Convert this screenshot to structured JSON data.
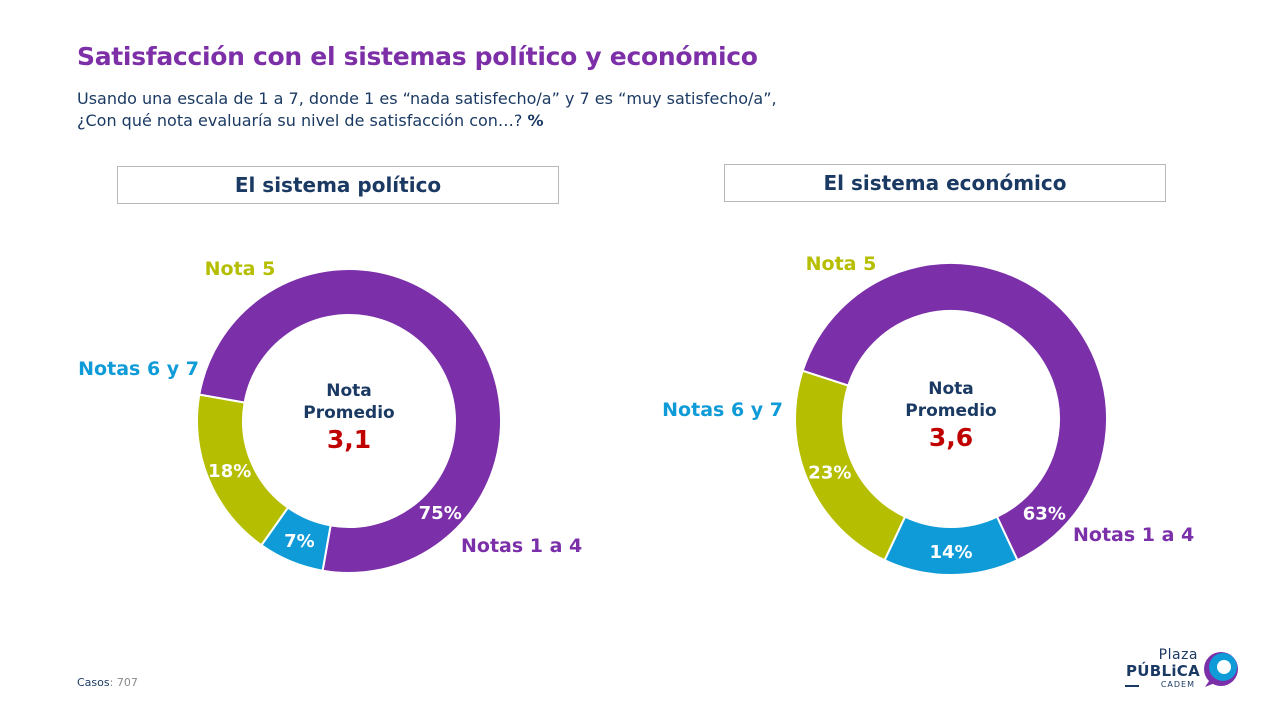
{
  "header": {
    "title": "Satisfacción con el sistemas político y económico",
    "question_line1": "Usando una escala de 1 a 7, donde 1 es “nada satisfecho/a” y 7 es “muy satisfecho/a”,",
    "question_line2": "¿Con qué nota evaluaría su nivel de satisfacción con…?",
    "question_unit": "%"
  },
  "footer": {
    "cases_label": "Casos",
    "cases_value": ": 707"
  },
  "logo": {
    "line1": "Plaza",
    "line2": "PÚBLiCA",
    "line3": "CADEM"
  },
  "colors": {
    "notas_1_4": "#7b2fa8",
    "nota_5": "#b5be00",
    "notas_6_7": "#0f9bd7",
    "average": "#c00000",
    "text_dark": "#1b3a63"
  },
  "chart_data": [
    {
      "type": "pie",
      "title": "El sistema político",
      "center_label_line1": "Nota",
      "center_label_line2": "Promedio",
      "average": "3,1",
      "series": [
        {
          "name": "Notas 1 a 4",
          "value": 75,
          "label": "75%"
        },
        {
          "name": "Notas 6 y 7",
          "value": 7,
          "label": "7%"
        },
        {
          "name": "Nota 5",
          "value": 18,
          "label": "18%"
        }
      ]
    },
    {
      "type": "pie",
      "title": "El sistema económico",
      "center_label_line1": "Nota",
      "center_label_line2": "Promedio",
      "average": "3,6",
      "series": [
        {
          "name": "Notas 1 a 4",
          "value": 63,
          "label": "63%"
        },
        {
          "name": "Notas 6 y 7",
          "value": 14,
          "label": "14%"
        },
        {
          "name": "Nota 5",
          "value": 23,
          "label": "23%"
        }
      ]
    }
  ]
}
